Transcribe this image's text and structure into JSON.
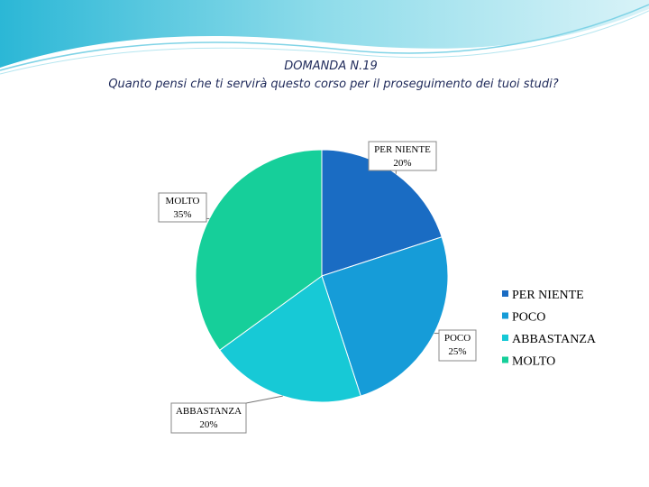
{
  "chart_data": {
    "type": "pie",
    "title": "DOMANDA N.19",
    "subtitle": "Quanto pensi che ti servirà questo corso per il proseguimento dei tuoi studi?",
    "categories": [
      "PER NIENTE",
      "POCO",
      "ABBASTANZA",
      "MOLTO"
    ],
    "values": [
      20,
      25,
      20,
      35
    ],
    "value_labels": [
      "20%",
      "25%",
      "20%",
      "35%"
    ],
    "colors": [
      "#1a6cc3",
      "#169cd8",
      "#17c9d6",
      "#16cf9a"
    ],
    "legend": "right"
  }
}
